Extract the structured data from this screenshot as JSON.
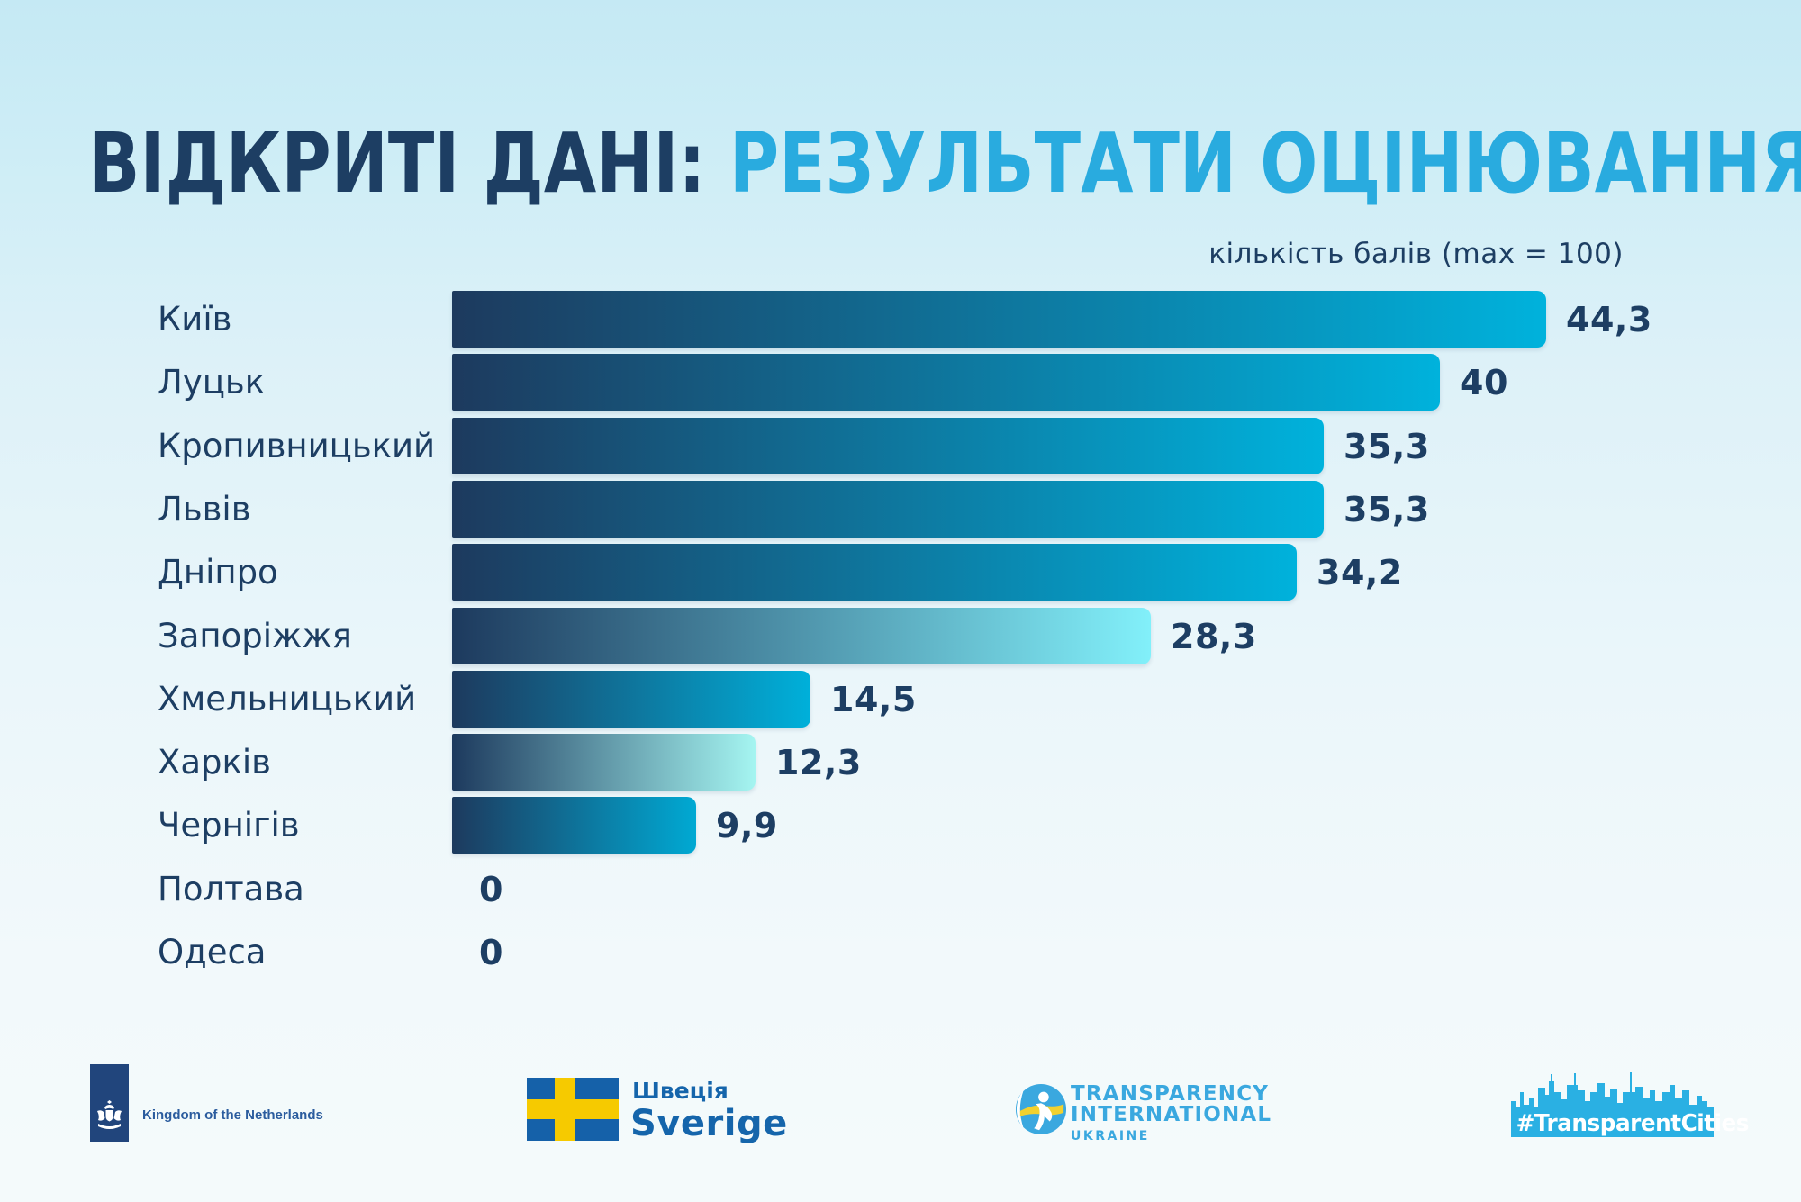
{
  "title": {
    "part1": "ВІДКРИТІ ДАНІ: ",
    "part2": "РЕЗУЛЬТАТИ ОЦІНЮВАННЯ"
  },
  "subtitle": "кількість балів (max = 100)",
  "chart_data": {
    "type": "bar",
    "orientation": "horizontal",
    "title": "ВІДКРИТІ ДАНІ: РЕЗУЛЬТАТИ ОЦІНЮВАННЯ",
    "xlabel": "кількість балів (max = 100)",
    "max_score": 100,
    "xlim": [
      0,
      47
    ],
    "grid": false,
    "legend": false,
    "categories": [
      "Київ",
      "Луцьк",
      "Кропивницький",
      "Львів",
      "Дніпро",
      "Запоріжжя",
      "Хмельницький",
      "Харків",
      "Чернігів",
      "Полтава",
      "Одеса"
    ],
    "values": [
      44.3,
      40,
      35.3,
      35.3,
      34.2,
      28.3,
      14.5,
      12.3,
      9.9,
      0,
      0
    ],
    "value_labels": [
      "44,3",
      "40",
      "35,3",
      "35,3",
      "34,2",
      "28,3",
      "14,5",
      "12,3",
      "9,9",
      "0",
      "0"
    ],
    "bar_gradient_start": "#1d3a5e",
    "bar_gradient_ends": [
      "#00b2dc",
      "#00b2dc",
      "#00b2dc",
      "#00b2dc",
      "#00b2dc",
      "#82f0fa",
      "#00b0da",
      "#a5f5f1",
      "#00a9d3",
      null,
      null
    ]
  },
  "colors": {
    "background_top": "#c5e9f4",
    "background_bottom": "#f4fafb",
    "title_dark": "#1d3e63",
    "title_accent": "#29abdf",
    "label_text": "#1d3e63",
    "ti_blue": "#3aa8df",
    "tc_blue": "#2ab0e3",
    "nl_navy": "#21457c",
    "se_blue": "#1561a9",
    "se_yellow": "#f6ca00"
  },
  "footer": {
    "netherlands_label": "Kingdom of the Netherlands",
    "sweden_label_uk": "Швеція",
    "sweden_label_sv": "Sverige",
    "ti_line1": "TRANSPARENCY",
    "ti_line2": "INTERNATIONAL",
    "ti_line3": "UKRAINE",
    "hashtag_label": "#TransparentCities"
  }
}
